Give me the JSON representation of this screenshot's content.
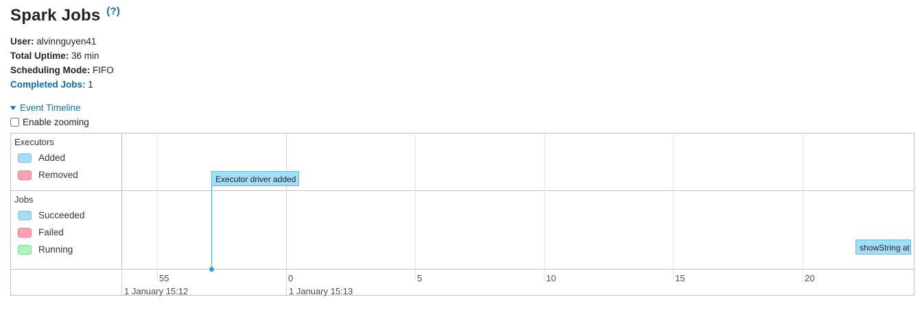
{
  "header": {
    "title": "Spark Jobs",
    "help": "(?)"
  },
  "summary": {
    "user_label": "User:",
    "user_value": "alvinnguyen41",
    "uptime_label": "Total Uptime:",
    "uptime_value": "36 min",
    "mode_label": "Scheduling Mode:",
    "mode_value": "FIFO",
    "completed_label": "Completed Jobs:",
    "completed_value": "1"
  },
  "timeline": {
    "toggle_label": "Event Timeline",
    "zoom_label": "Enable zooming",
    "zoom_checked": false,
    "executors": {
      "title": "Executors",
      "legend": [
        {
          "label": "Added",
          "color": "#a4ddf8"
        },
        {
          "label": "Removed",
          "color": "#ffa1ae"
        }
      ],
      "event_label": "Executor driver added"
    },
    "jobs": {
      "title": "Jobs",
      "legend": [
        {
          "label": "Succeeded",
          "color": "#a4ddf8"
        },
        {
          "label": "Failed",
          "color": "#ffa1ae"
        },
        {
          "label": "Running",
          "color": "#a8f5b8"
        }
      ],
      "event_label": "showString at"
    },
    "axis": {
      "minor_ticks": [
        "55",
        "0",
        "5",
        "10",
        "15",
        "20"
      ],
      "major_ticks": [
        "1 January 15:12",
        "1 January 15:13"
      ]
    }
  }
}
